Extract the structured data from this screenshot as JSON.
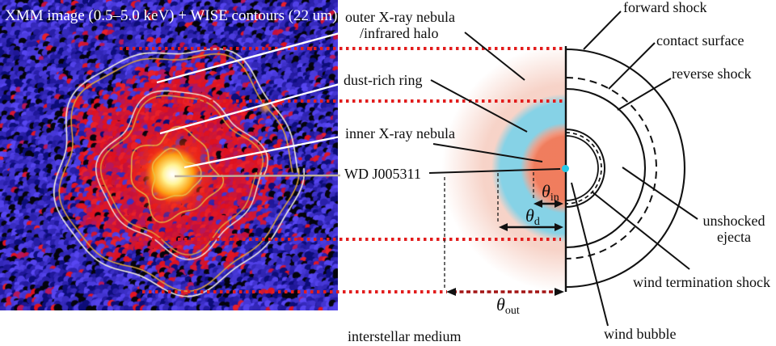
{
  "image_panel": {
    "title": "XMM image (0.5–5.0 keV) + WISE contours (22 um)"
  },
  "labels": {
    "outer1": "outer X-ray nebula",
    "outer2": "/infrared halo",
    "dust": "dust-rich ring",
    "inner": "inner X-ray nebula",
    "wd": "WD J005311",
    "forward": "forward shock",
    "contact": "contact surface",
    "reverse": "reverse shock",
    "unshocked1": "unshocked",
    "unshocked2": "ejecta",
    "wind_termination": "wind termination shock",
    "wind_bubble": "wind bubble",
    "ism": "interstellar medium"
  },
  "theta": {
    "symbol": "θ",
    "in": "in",
    "d": "d",
    "out": "out"
  },
  "colors": {
    "red_dotted_line": "#e21d1d",
    "theta_out_arrow": "#a31515",
    "wd_star_dot": "#25c8e6",
    "outer_halo_region": "#f6cfc3",
    "dust_ring_region": "#80d2e8",
    "inner_nebula_region": "#f07a5a",
    "wise_contour": "#e2a93c",
    "image_background": "#1010a0"
  }
}
